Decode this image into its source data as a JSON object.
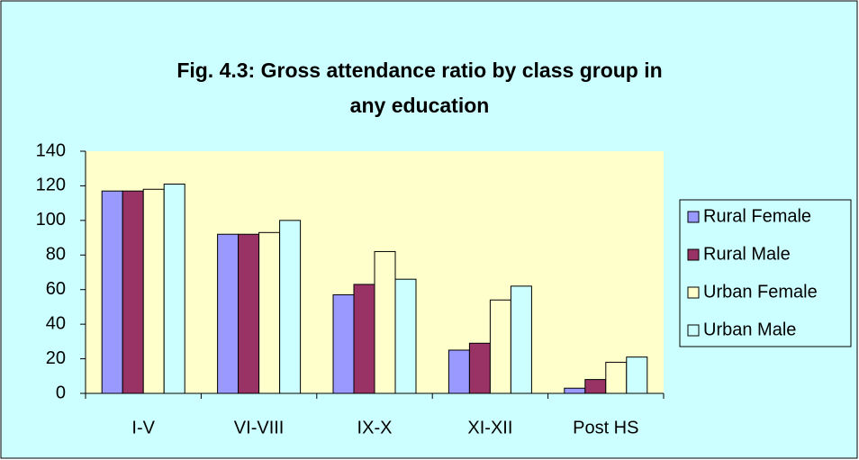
{
  "chart_data": {
    "type": "bar",
    "title": [
      "Fig. 4.3:  Gross attendance ratio by class group in",
      "any education"
    ],
    "categories": [
      "I-V",
      "VI-VIII",
      "IX-X",
      "XI-XII",
      "Post HS"
    ],
    "series": [
      {
        "name": "Rural Female",
        "color": "#9999ff",
        "values": [
          117,
          92,
          57,
          25,
          3
        ]
      },
      {
        "name": "Rural Male",
        "color": "#993366",
        "values": [
          117,
          92,
          63,
          29,
          8
        ]
      },
      {
        "name": "Urban Female",
        "color": "#ffffcc",
        "values": [
          118,
          93,
          82,
          54,
          18
        ]
      },
      {
        "name": "Urban Male",
        "color": "#ccffff",
        "values": [
          121,
          100,
          66,
          62,
          21
        ]
      }
    ],
    "ylim": [
      0,
      140
    ],
    "yticks": [
      0,
      20,
      40,
      60,
      80,
      100,
      120,
      140
    ],
    "legend": "right"
  }
}
